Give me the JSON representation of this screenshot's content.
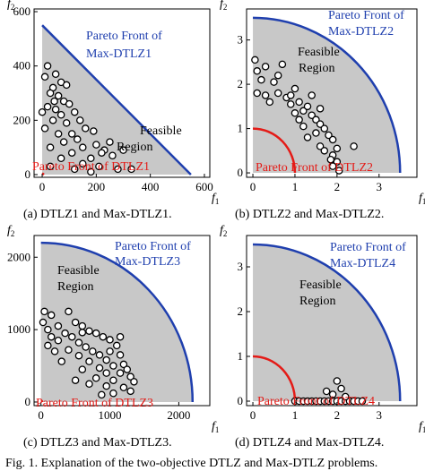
{
  "figure_caption": "Fig. 1.   Explanation of the two-objective DTLZ and Max-DTLZ problems.",
  "colors": {
    "region": "#c8c8c8",
    "max_front": "#1f3fae",
    "min_front": "#e41b17",
    "point_fill": "#ffffff",
    "point_stroke": "#000000"
  },
  "panels": [
    {
      "caption": "(a) DTLZ1 and Max-DTLZ1.",
      "labels": {
        "xaxis": "f1",
        "yaxis": "f2",
        "max_front": "Pareto Front of Max-DTLZ1",
        "min_front": "Pareto Front of DTLZ1",
        "region": "Feasible Region"
      },
      "chart_data": {
        "type": "scatter",
        "shape": "triangle",
        "xlim": [
          -30,
          620
        ],
        "ylim": [
          -10,
          610
        ],
        "x_ticks": [
          0,
          200,
          400,
          600
        ],
        "y_ticks": [
          0,
          200,
          400,
          600
        ],
        "max_front": {
          "x": [
            0,
            550
          ],
          "y": [
            550,
            0
          ]
        },
        "min_front": {
          "x": [
            0,
            0.5
          ],
          "y": [
            0.5,
            0
          ]
        },
        "points": [
          [
            20,
            400
          ],
          [
            10,
            360
          ],
          [
            50,
            370
          ],
          [
            70,
            340
          ],
          [
            40,
            320
          ],
          [
            90,
            330
          ],
          [
            30,
            300
          ],
          [
            60,
            290
          ],
          [
            80,
            270
          ],
          [
            20,
            250
          ],
          [
            100,
            260
          ],
          [
            50,
            240
          ],
          [
            120,
            230
          ],
          [
            70,
            220
          ],
          [
            140,
            200
          ],
          [
            40,
            200
          ],
          [
            90,
            190
          ],
          [
            160,
            170
          ],
          [
            110,
            150
          ],
          [
            60,
            150
          ],
          [
            190,
            160
          ],
          [
            130,
            130
          ],
          [
            80,
            120
          ],
          [
            200,
            110
          ],
          [
            150,
            100
          ],
          [
            30,
            100
          ],
          [
            250,
            120
          ],
          [
            230,
            90
          ],
          [
            110,
            80
          ],
          [
            180,
            60
          ],
          [
            70,
            60
          ],
          [
            260,
            70
          ],
          [
            150,
            40
          ],
          [
            30,
            30
          ],
          [
            210,
            30
          ],
          [
            120,
            20
          ],
          [
            280,
            20
          ],
          [
            180,
            10
          ],
          [
            330,
            20
          ],
          [
            220,
            80
          ],
          [
            300,
            90
          ],
          [
            10,
            170
          ],
          [
            45,
            270
          ],
          [
            0,
            230
          ]
        ]
      }
    },
    {
      "caption": "(b) DTLZ2 and Max-DTLZ2.",
      "labels": {
        "xaxis": "f1",
        "yaxis": "f2",
        "max_front": "Pareto Front of Max-DTLZ2",
        "min_front": "Pareto Front of DTLZ2",
        "region": "Feasible Region"
      },
      "chart_data": {
        "type": "scatter",
        "shape": "quarter-circle",
        "xlim": [
          -0.15,
          3.9
        ],
        "ylim": [
          -0.1,
          3.7
        ],
        "x_ticks": [
          0,
          1,
          2,
          3
        ],
        "y_ticks": [
          0,
          1,
          2,
          3
        ],
        "max_front": {
          "radius": 3.5
        },
        "min_front": {
          "radius": 1.0
        },
        "points": [
          [
            0.05,
            2.55
          ],
          [
            0.1,
            2.3
          ],
          [
            0.3,
            2.4
          ],
          [
            0.7,
            2.45
          ],
          [
            0.2,
            2.1
          ],
          [
            0.5,
            2.05
          ],
          [
            0.1,
            1.8
          ],
          [
            0.3,
            1.75
          ],
          [
            0.6,
            1.8
          ],
          [
            0.8,
            1.7
          ],
          [
            0.4,
            1.6
          ],
          [
            0.9,
            1.55
          ],
          [
            1.1,
            1.6
          ],
          [
            1.2,
            1.4
          ],
          [
            1.3,
            1.5
          ],
          [
            1.0,
            1.35
          ],
          [
            1.4,
            1.3
          ],
          [
            1.5,
            1.2
          ],
          [
            1.6,
            1.1
          ],
          [
            1.2,
            1.05
          ],
          [
            1.7,
            1.0
          ],
          [
            1.5,
            0.9
          ],
          [
            1.8,
            0.85
          ],
          [
            1.3,
            0.8
          ],
          [
            1.9,
            0.75
          ],
          [
            1.6,
            0.6
          ],
          [
            2.0,
            0.55
          ],
          [
            1.7,
            0.5
          ],
          [
            1.9,
            0.4
          ],
          [
            1.85,
            0.3
          ],
          [
            2.0,
            0.25
          ],
          [
            1.9,
            0.15
          ],
          [
            2.05,
            0.05
          ],
          [
            2.4,
            0.6
          ],
          [
            1.4,
            1.75
          ],
          [
            1.0,
            1.9
          ],
          [
            0.6,
            2.2
          ],
          [
            1.6,
            1.45
          ],
          [
            1.1,
            1.2
          ],
          [
            0.9,
            1.75
          ]
        ]
      }
    },
    {
      "caption": "(c) DTLZ3 and Max-DTLZ3.",
      "labels": {
        "xaxis": "f1",
        "yaxis": "f2",
        "max_front": "Pareto Front of Max-DTLZ3",
        "min_front": "Pareto Front of DTLZ3",
        "region": "Feasible Region"
      },
      "chart_data": {
        "type": "scatter",
        "shape": "quarter-circle",
        "xlim": [
          -100,
          2450
        ],
        "ylim": [
          -50,
          2300
        ],
        "x_ticks": [
          0,
          1000,
          2000
        ],
        "y_ticks": [
          0,
          1000,
          2000
        ],
        "max_front": {
          "radius": 2200
        },
        "min_front": {
          "radius": 3
        },
        "points": [
          [
            50,
            1250
          ],
          [
            150,
            1200
          ],
          [
            30,
            1100
          ],
          [
            400,
            1250
          ],
          [
            250,
            1050
          ],
          [
            100,
            1000
          ],
          [
            500,
            1100
          ],
          [
            350,
            950
          ],
          [
            600,
            1050
          ],
          [
            150,
            900
          ],
          [
            700,
            980
          ],
          [
            450,
            900
          ],
          [
            800,
            950
          ],
          [
            250,
            850
          ],
          [
            550,
            820
          ],
          [
            900,
            900
          ],
          [
            650,
            760
          ],
          [
            100,
            780
          ],
          [
            1000,
            860
          ],
          [
            750,
            700
          ],
          [
            400,
            720
          ],
          [
            850,
            650
          ],
          [
            1100,
            780
          ],
          [
            550,
            640
          ],
          [
            950,
            580
          ],
          [
            1150,
            650
          ],
          [
            700,
            560
          ],
          [
            300,
            560
          ],
          [
            1050,
            500
          ],
          [
            850,
            470
          ],
          [
            1200,
            520
          ],
          [
            600,
            450
          ],
          [
            950,
            400
          ],
          [
            1150,
            400
          ],
          [
            1250,
            450
          ],
          [
            800,
            330
          ],
          [
            1050,
            300
          ],
          [
            1300,
            350
          ],
          [
            700,
            250
          ],
          [
            950,
            220
          ],
          [
            1200,
            200
          ],
          [
            1050,
            120
          ],
          [
            880,
            100
          ],
          [
            1350,
            280
          ],
          [
            1300,
            150
          ],
          [
            500,
            300
          ],
          [
            200,
            700
          ],
          [
            1000,
            700
          ],
          [
            1150,
            900
          ],
          [
            600,
            960
          ]
        ]
      }
    },
    {
      "caption": "(d) DTLZ4 and Max-DTLZ4.",
      "labels": {
        "xaxis": "f1",
        "yaxis": "f2",
        "max_front": "Pareto Front of Max-DTLZ4",
        "min_front": "Pareto Front of DTLZ4",
        "region": "Feasible Region"
      },
      "chart_data": {
        "type": "scatter",
        "shape": "quarter-circle",
        "xlim": [
          -0.15,
          3.9
        ],
        "ylim": [
          -0.1,
          3.7
        ],
        "x_ticks": [
          0,
          1,
          2,
          3
        ],
        "y_ticks": [
          0,
          1,
          2,
          3
        ],
        "max_front": {
          "radius": 3.5
        },
        "min_front": {
          "radius": 1.0
        },
        "points": [
          [
            1.0,
            0
          ],
          [
            1.1,
            0
          ],
          [
            1.2,
            0
          ],
          [
            1.3,
            0
          ],
          [
            1.4,
            0
          ],
          [
            1.5,
            0
          ],
          [
            1.6,
            0
          ],
          [
            1.7,
            0
          ],
          [
            1.8,
            0
          ],
          [
            1.9,
            0
          ],
          [
            2.0,
            0
          ],
          [
            2.1,
            0
          ],
          [
            2.2,
            0
          ],
          [
            2.3,
            0
          ],
          [
            2.4,
            0
          ],
          [
            2.5,
            0
          ],
          [
            2.6,
            0
          ],
          [
            2.0,
            0.45
          ],
          [
            2.1,
            0.28
          ],
          [
            1.9,
            0.15
          ],
          [
            2.2,
            0.1
          ],
          [
            1.75,
            0.22
          ]
        ]
      }
    }
  ]
}
